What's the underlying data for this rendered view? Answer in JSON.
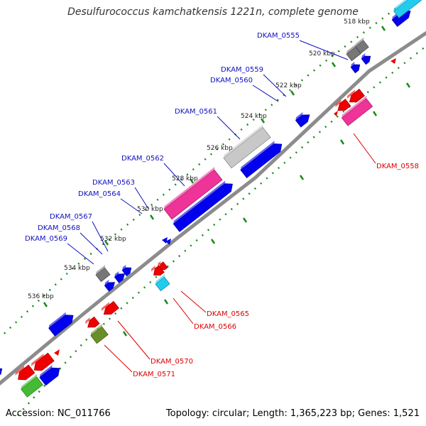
{
  "title": "Desulfurococcus kamchatkensis 1221n, complete genome",
  "accession": "Accession: NC_011766",
  "topology": "Topology: circular; Length: 1,365,223 bp; Genes: 1,521",
  "colors": {
    "backbone": "#8c8c8c",
    "tick": "#1a8a1a",
    "cds": "#0000ee",
    "gene_label_fwd": "#1010c0",
    "gene_label_rev": "#dd0000",
    "red_feature": "#ee0000",
    "gray_feature": "#777777",
    "magenta_feature": "#ee3399",
    "cyan_feature": "#22ccee",
    "green_feature": "#44bb33",
    "olive_feature": "#6a8f2a"
  },
  "kbp_labels": [
    "518 kbp",
    "520 kbp",
    "522 kbp",
    "524 kbp",
    "526 kbp",
    "528 kbp",
    "530 kbp",
    "532 kbp",
    "534 kbp",
    "536 kbp"
  ],
  "forward_genes": [
    "DKAM_0555",
    "DKAM_0559",
    "DKAM_0560",
    "DKAM_0561",
    "DKAM_0562",
    "DKAM_0563",
    "DKAM_0564",
    "DKAM_0567",
    "DKAM_0568",
    "DKAM_0569"
  ],
  "reverse_genes": [
    "DKAM_0558",
    "DKAM_0565",
    "DKAM_0566",
    "DKAM_0570",
    "DKAM_0571"
  ]
}
